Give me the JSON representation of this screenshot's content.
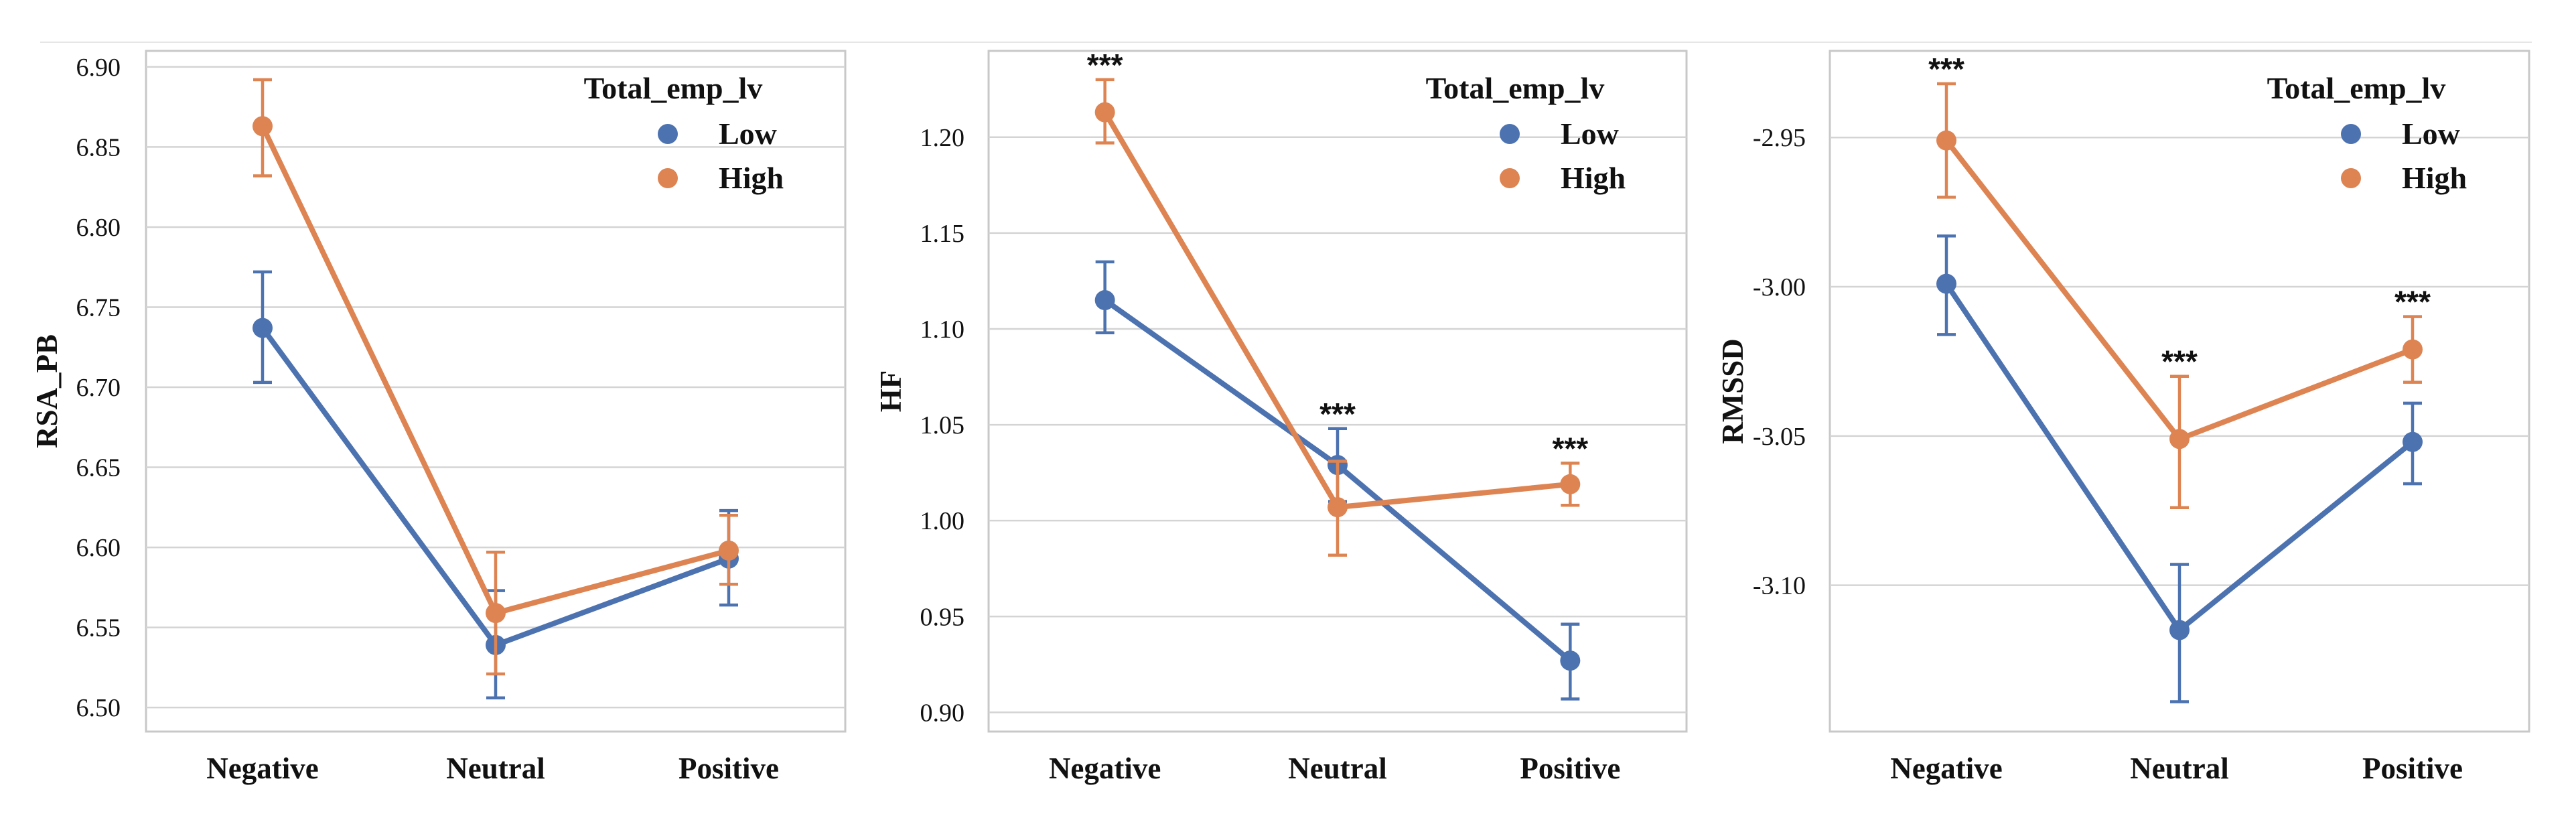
{
  "style": {
    "low_color": "#4c72b0",
    "high_color": "#dd8452",
    "grid_color": "#d4d4d4",
    "frame_color": "#c8c8c8"
  },
  "chart_data": [
    {
      "type": "line",
      "ylabel": "RSA_PB",
      "categories": [
        "Negative",
        "Neutral",
        "Positive"
      ],
      "ylim": [
        6.485,
        6.91
      ],
      "yticks": [
        "6.50",
        "6.55",
        "6.60",
        "6.65",
        "6.70",
        "6.75",
        "6.80",
        "6.85",
        "6.90"
      ],
      "legend": {
        "title": "Total_emp_lv",
        "position": "top-right"
      },
      "significance": [
        "",
        "",
        ""
      ],
      "series": [
        {
          "name": "Low",
          "values": [
            6.737,
            6.539,
            6.593
          ],
          "err_low": [
            6.703,
            6.506,
            6.564
          ],
          "err_high": [
            6.772,
            6.573,
            6.623
          ]
        },
        {
          "name": "High",
          "values": [
            6.863,
            6.559,
            6.598
          ],
          "err_low": [
            6.832,
            6.521,
            6.577
          ],
          "err_high": [
            6.892,
            6.597,
            6.62
          ]
        }
      ]
    },
    {
      "type": "line",
      "ylabel": "HF",
      "categories": [
        "Negative",
        "Neutral",
        "Positive"
      ],
      "ylim": [
        0.89,
        1.245
      ],
      "yticks": [
        "0.90",
        "0.95",
        "1.00",
        "1.05",
        "1.10",
        "1.15",
        "1.20"
      ],
      "legend": {
        "title": "Total_emp_lv",
        "position": "top-right"
      },
      "significance": [
        "***",
        "***",
        "***"
      ],
      "series": [
        {
          "name": "Low",
          "values": [
            1.115,
            1.029,
            0.927
          ],
          "err_low": [
            1.098,
            1.01,
            0.907
          ],
          "err_high": [
            1.135,
            1.048,
            0.946
          ]
        },
        {
          "name": "High",
          "values": [
            1.213,
            1.007,
            1.019
          ],
          "err_low": [
            1.197,
            0.982,
            1.008
          ],
          "err_high": [
            1.23,
            1.031,
            1.03
          ]
        }
      ]
    },
    {
      "type": "line",
      "ylabel": "RMSSD",
      "categories": [
        "Negative",
        "Neutral",
        "Positive"
      ],
      "ylim": [
        -3.149,
        -2.921
      ],
      "yticks": [
        "-3.10",
        "-3.05",
        "-3.00",
        "-2.95"
      ],
      "legend": {
        "title": "Total_emp_lv",
        "position": "top-right"
      },
      "significance": [
        "***",
        "***",
        "***"
      ],
      "series": [
        {
          "name": "Low",
          "values": [
            -2.999,
            -3.115,
            -3.052
          ],
          "err_low": [
            -3.016,
            -3.139,
            -3.066
          ],
          "err_high": [
            -2.983,
            -3.093,
            -3.039
          ]
        },
        {
          "name": "High",
          "values": [
            -2.951,
            -3.051,
            -3.021
          ],
          "err_low": [
            -2.97,
            -3.074,
            -3.032
          ],
          "err_high": [
            -2.932,
            -3.03,
            -3.01
          ]
        }
      ]
    }
  ]
}
